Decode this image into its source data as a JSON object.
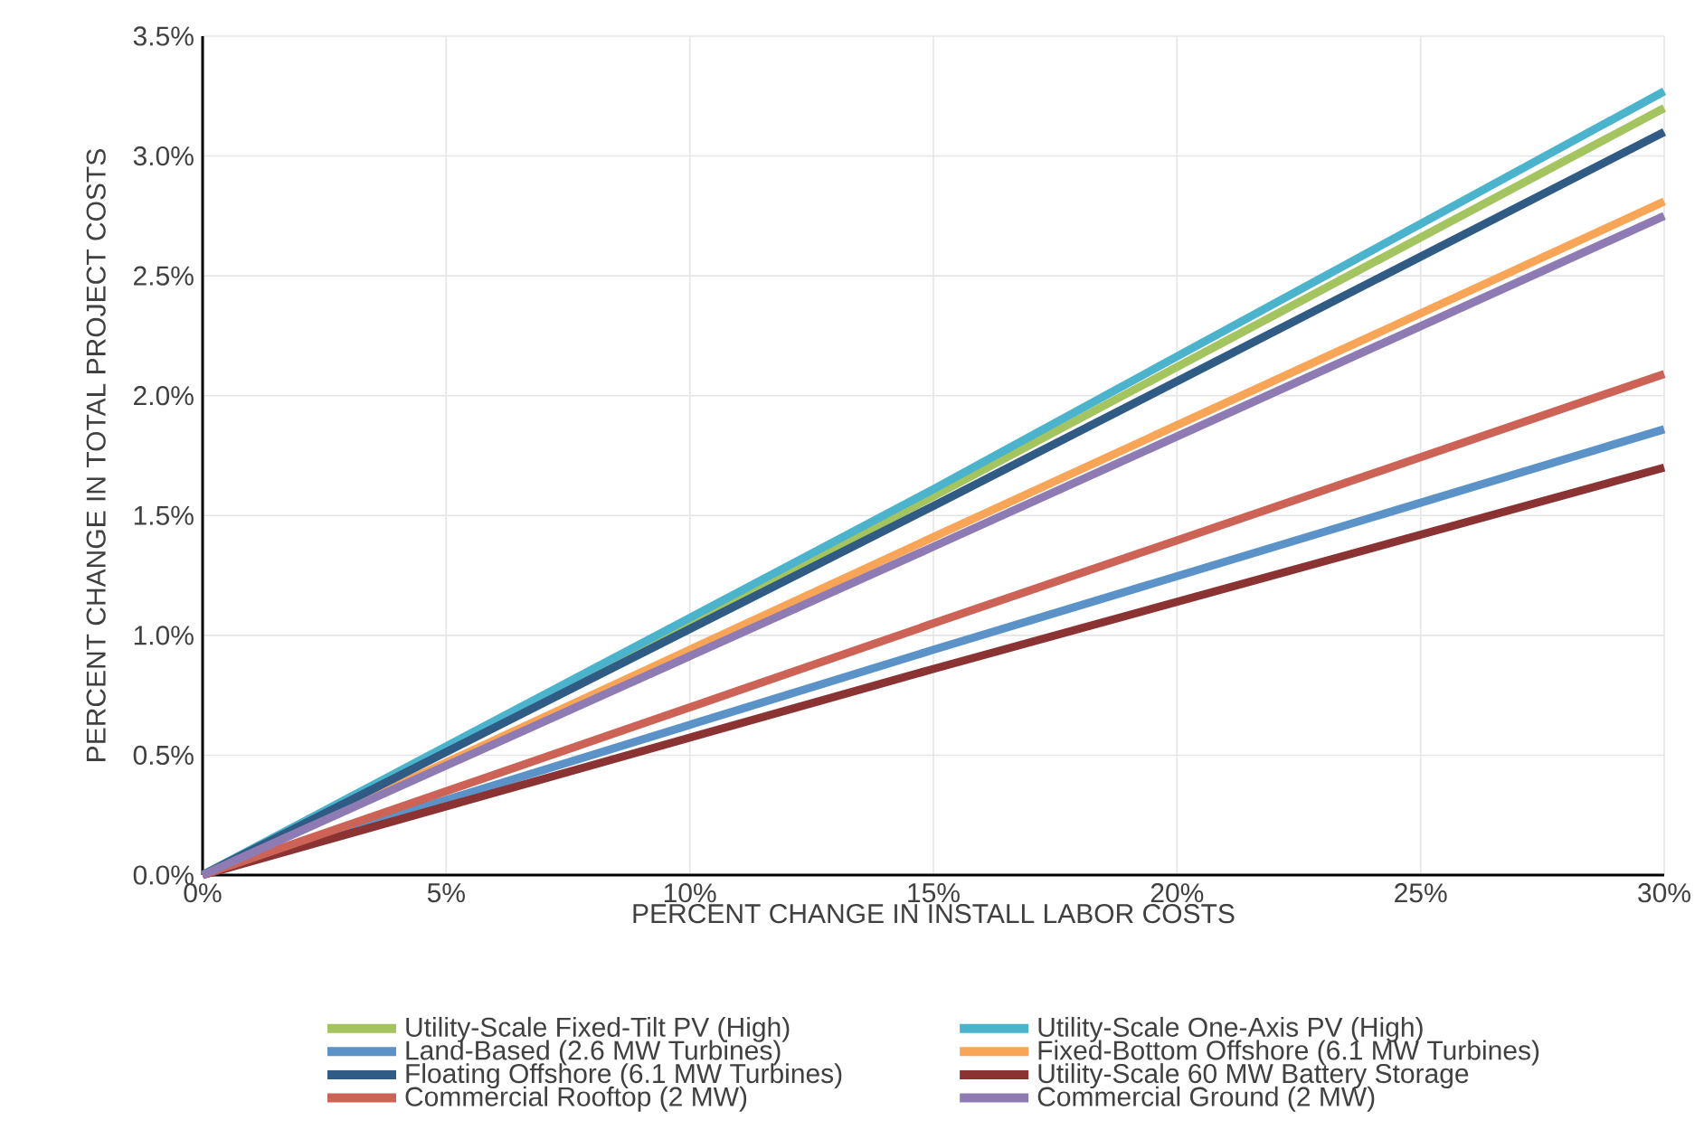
{
  "chart_data": {
    "type": "line",
    "xlabel": "PERCENT CHANGE IN INSTALL LABOR COSTS",
    "ylabel": "PERCENT CHANGE IN TOTAL PROJECT COSTS",
    "x": [
      0,
      15,
      30
    ],
    "series": [
      {
        "name": "Utility-Scale Fixed-Tilt PV (High)",
        "color": "#a3c45f",
        "values": [
          0,
          1.58,
          3.2
        ]
      },
      {
        "name": "Utility-Scale One-Axis PV (High)",
        "color": "#4bb3cc",
        "values": [
          0,
          1.61,
          3.27
        ]
      },
      {
        "name": "Land-Based (2.6 MW Turbines)",
        "color": "#5b93c9",
        "values": [
          0,
          0.94,
          1.86
        ]
      },
      {
        "name": "Fixed-Bottom Offshore (6.1 MW Turbines)",
        "color": "#f9a557",
        "values": [
          0,
          1.41,
          2.81
        ]
      },
      {
        "name": "Floating Offshore (6.1 MW Turbines)",
        "color": "#2f5b85",
        "values": [
          0,
          1.54,
          3.1
        ]
      },
      {
        "name": "Utility-Scale 60 MW Battery Storage",
        "color": "#8b3333",
        "values": [
          0,
          0.86,
          1.7
        ]
      },
      {
        "name": "Commercial Rooftop (2 MW)",
        "color": "#cd6357",
        "values": [
          0,
          1.05,
          2.09
        ]
      },
      {
        "name": "Commercial Ground (2 MW)",
        "color": "#8f7bb3",
        "values": [
          0,
          1.37,
          2.75
        ]
      }
    ],
    "xlim": [
      0,
      30
    ],
    "ylim": [
      0,
      3.5
    ],
    "xticks": [
      {
        "value": 0,
        "label": "0%"
      },
      {
        "value": 5,
        "label": "5%"
      },
      {
        "value": 10,
        "label": "10%"
      },
      {
        "value": 15,
        "label": "15%"
      },
      {
        "value": 20,
        "label": "20%"
      },
      {
        "value": 25,
        "label": "25%"
      },
      {
        "value": 30,
        "label": "30%"
      }
    ],
    "yticks": [
      {
        "value": 0,
        "label": "0.0%"
      },
      {
        "value": 0.5,
        "label": "0.5%"
      },
      {
        "value": 1,
        "label": "1.0%"
      },
      {
        "value": 1.5,
        "label": "1.5%"
      },
      {
        "value": 2,
        "label": "2.0%"
      },
      {
        "value": 2.5,
        "label": "2.5%"
      },
      {
        "value": 3,
        "label": "3.0%"
      },
      {
        "value": 3.5,
        "label": "3.5%"
      }
    ],
    "grid": true,
    "legend": "bottom",
    "marker": "none",
    "line_style": "solid"
  }
}
